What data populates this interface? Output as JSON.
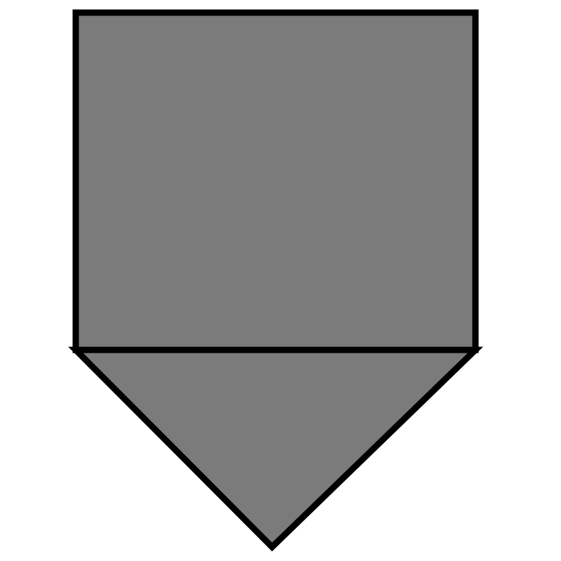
{
  "diagram": {
    "shapes": [
      {
        "role": "square",
        "fill": "#7b7b7b",
        "stroke": "#000000"
      },
      {
        "role": "triangle",
        "fill": "#7b7b7b",
        "stroke": "#000000"
      }
    ]
  }
}
